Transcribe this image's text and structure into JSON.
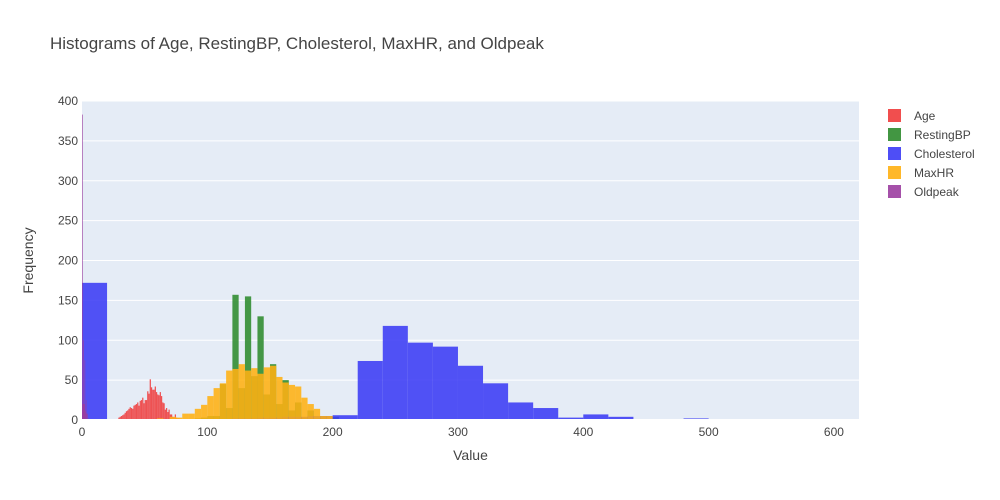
{
  "chart_data": {
    "type": "bar",
    "title": "Histograms of Age, RestingBP, Cholesterol, MaxHR, and Oldpeak",
    "xlabel": "Value",
    "ylabel": "Frequency",
    "xlim": [
      0,
      620
    ],
    "ylim": [
      0,
      400
    ],
    "x_ticks": [
      0,
      100,
      200,
      300,
      400,
      500,
      600
    ],
    "y_ticks": [
      0,
      50,
      100,
      150,
      200,
      250,
      300,
      350,
      400
    ],
    "grid": true,
    "legend_position": "top-right",
    "barmode": "overlay",
    "series": [
      {
        "name": "Age",
        "color": "#ef3b3b",
        "bin_width": 1,
        "x": [
          28,
          29,
          30,
          31,
          32,
          33,
          34,
          35,
          36,
          37,
          38,
          39,
          40,
          41,
          42,
          43,
          44,
          45,
          46,
          47,
          48,
          49,
          50,
          51,
          52,
          53,
          54,
          55,
          56,
          57,
          58,
          59,
          60,
          61,
          62,
          63,
          64,
          65,
          66,
          67,
          68,
          69,
          70,
          71,
          72,
          73,
          74,
          75,
          76,
          77
        ],
        "values": [
          1,
          3,
          4,
          5,
          6,
          7,
          9,
          11,
          12,
          14,
          16,
          15,
          14,
          18,
          19,
          20,
          22,
          18,
          24,
          25,
          28,
          21,
          25,
          25,
          36,
          33,
          51,
          41,
          38,
          38,
          42,
          35,
          32,
          31,
          35,
          30,
          22,
          21,
          13,
          15,
          10,
          13,
          7,
          7,
          4,
          3,
          7,
          3,
          2,
          2
        ]
      },
      {
        "name": "RestingBP",
        "color": "#2e8b2e",
        "bin_width": 5,
        "x": [
          0,
          80,
          85,
          90,
          95,
          100,
          105,
          110,
          115,
          120,
          125,
          130,
          135,
          140,
          145,
          150,
          155,
          160,
          165,
          170,
          175,
          180,
          185,
          190,
          195,
          200
        ],
        "values": [
          1,
          1,
          0,
          2,
          3,
          5,
          5,
          45,
          15,
          157,
          40,
          155,
          55,
          130,
          32,
          70,
          20,
          50,
          12,
          22,
          3,
          12,
          2,
          3,
          0,
          4
        ]
      },
      {
        "name": "Cholesterol",
        "color": "#3b3bf5",
        "bin_width": 20,
        "x": [
          0,
          20,
          40,
          60,
          80,
          100,
          120,
          140,
          160,
          180,
          200,
          220,
          240,
          260,
          280,
          300,
          320,
          340,
          360,
          380,
          400,
          420,
          440,
          460,
          480,
          500,
          520,
          540,
          560,
          580,
          600
        ],
        "values": [
          172,
          0,
          0,
          0,
          1,
          1,
          2,
          3,
          4,
          5,
          6,
          74,
          118,
          97,
          92,
          68,
          46,
          22,
          15,
          3,
          7,
          4,
          0,
          1,
          2,
          1,
          1,
          0,
          1,
          0,
          1
        ]
      },
      {
        "name": "MaxHR",
        "color": "#ffb012",
        "bin_width": 5,
        "x": [
          60,
          65,
          70,
          75,
          80,
          85,
          90,
          95,
          100,
          105,
          110,
          115,
          120,
          125,
          130,
          135,
          140,
          145,
          150,
          155,
          160,
          165,
          170,
          175,
          180,
          185,
          190,
          195,
          200
        ],
        "values": [
          2,
          1,
          4,
          3,
          8,
          8,
          14,
          19,
          30,
          40,
          46,
          62,
          64,
          70,
          62,
          65,
          58,
          66,
          68,
          54,
          47,
          44,
          42,
          28,
          20,
          14,
          5,
          5,
          1
        ]
      },
      {
        "name": "Oldpeak",
        "color": "#9b3da0",
        "bin_width": 0.2,
        "x": [
          -2.6,
          -2.0,
          -1.0,
          -0.4,
          0.0,
          0.2,
          0.4,
          0.6,
          0.8,
          1.0,
          1.2,
          1.4,
          1.6,
          1.8,
          2.0,
          2.4,
          2.8,
          3.0,
          3.4,
          4.0,
          5.0,
          6.0
        ],
        "values": [
          1,
          2,
          2,
          3,
          383,
          12,
          20,
          10,
          20,
          100,
          20,
          20,
          20,
          15,
          75,
          12,
          10,
          25,
          8,
          8,
          2,
          1
        ]
      }
    ]
  }
}
